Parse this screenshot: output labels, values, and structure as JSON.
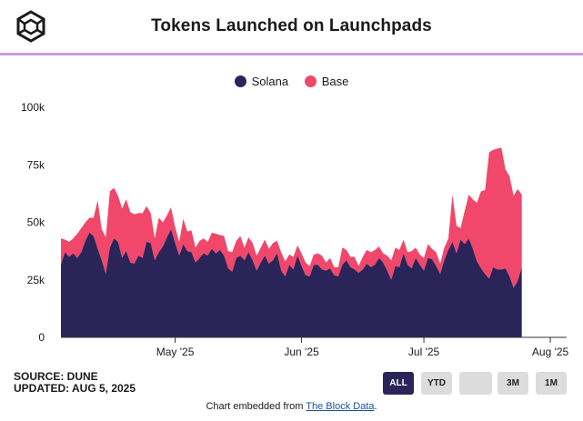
{
  "header": {
    "title": "Tokens Launched on Launchpads"
  },
  "colors": {
    "solana": "#2b2459",
    "base": "#f0476b",
    "divider": "#c59bea"
  },
  "chart_data": {
    "type": "area",
    "stacked": true,
    "grid": false,
    "legend_position": "top",
    "x_start": "2025-04-03",
    "x_end": "2025-08-05",
    "x_tick_labels": [
      {
        "date": "2025-05-01",
        "label": "May '25"
      },
      {
        "date": "2025-06-01",
        "label": "Jun '25"
      },
      {
        "date": "2025-07-01",
        "label": "Jul '25"
      },
      {
        "date": "2025-08-01",
        "label": "Aug '25"
      }
    ],
    "y_ticks": [
      {
        "value": 0,
        "label": "0"
      },
      {
        "value": 25000,
        "label": "25k"
      },
      {
        "value": 50000,
        "label": "50k"
      },
      {
        "value": 75000,
        "label": "75k"
      },
      {
        "value": 100000,
        "label": "100k"
      }
    ],
    "ylim": [
      0,
      100000
    ],
    "series": [
      {
        "name": "Solana",
        "color": "#2b2459",
        "values": [
          [
            0,
            31500
          ],
          [
            1,
            37000
          ],
          [
            2,
            35000
          ],
          [
            3,
            36500
          ],
          [
            4,
            34500
          ],
          [
            5,
            37000
          ],
          [
            6,
            42000
          ],
          [
            7,
            45500
          ],
          [
            8,
            44000
          ],
          [
            9,
            38500
          ],
          [
            10,
            33500
          ],
          [
            11,
            27500
          ],
          [
            12,
            39000
          ],
          [
            13,
            43000
          ],
          [
            14,
            41500
          ],
          [
            15,
            34500
          ],
          [
            16,
            37500
          ],
          [
            17,
            32500
          ],
          [
            18,
            32000
          ],
          [
            19,
            35500
          ],
          [
            20,
            34500
          ],
          [
            21,
            41500
          ],
          [
            22,
            41000
          ],
          [
            23,
            33500
          ],
          [
            24,
            37000
          ],
          [
            25,
            39500
          ],
          [
            26,
            43500
          ],
          [
            27,
            47000
          ],
          [
            28,
            41000
          ],
          [
            29,
            35500
          ],
          [
            30,
            40500
          ],
          [
            31,
            37500
          ],
          [
            32,
            37000
          ],
          [
            33,
            32500
          ],
          [
            34,
            34500
          ],
          [
            35,
            36500
          ],
          [
            36,
            35500
          ],
          [
            37,
            38500
          ],
          [
            38,
            36500
          ],
          [
            39,
            38000
          ],
          [
            40,
            35500
          ],
          [
            41,
            30000
          ],
          [
            42,
            28500
          ],
          [
            43,
            34500
          ],
          [
            44,
            35500
          ],
          [
            45,
            33500
          ],
          [
            46,
            37000
          ],
          [
            47,
            33500
          ],
          [
            48,
            29000
          ],
          [
            49,
            32500
          ],
          [
            50,
            35500
          ],
          [
            51,
            32000
          ],
          [
            52,
            33500
          ],
          [
            53,
            36500
          ],
          [
            54,
            29000
          ],
          [
            55,
            26500
          ],
          [
            56,
            31500
          ],
          [
            57,
            29500
          ],
          [
            58,
            35500
          ],
          [
            59,
            31000
          ],
          [
            60,
            27000
          ],
          [
            61,
            26500
          ],
          [
            62,
            31500
          ],
          [
            63,
            31500
          ],
          [
            64,
            29500
          ],
          [
            65,
            29000
          ],
          [
            66,
            30000
          ],
          [
            67,
            27000
          ],
          [
            68,
            26500
          ],
          [
            69,
            31500
          ],
          [
            70,
            33500
          ],
          [
            71,
            30500
          ],
          [
            72,
            29500
          ],
          [
            73,
            28000
          ],
          [
            74,
            29500
          ],
          [
            75,
            32000
          ],
          [
            76,
            30500
          ],
          [
            77,
            31500
          ],
          [
            78,
            34500
          ],
          [
            79,
            32500
          ],
          [
            80,
            29000
          ],
          [
            81,
            25000
          ],
          [
            82,
            31000
          ],
          [
            83,
            30500
          ],
          [
            84,
            36500
          ],
          [
            85,
            31500
          ],
          [
            86,
            30000
          ],
          [
            87,
            34500
          ],
          [
            88,
            31500
          ],
          [
            89,
            29000
          ],
          [
            90,
            34500
          ],
          [
            91,
            34000
          ],
          [
            92,
            31000
          ],
          [
            93,
            27500
          ],
          [
            94,
            33500
          ],
          [
            95,
            38000
          ],
          [
            96,
            41500
          ],
          [
            97,
            36500
          ],
          [
            98,
            42500
          ],
          [
            99,
            40500
          ],
          [
            100,
            43000
          ],
          [
            101,
            38500
          ],
          [
            102,
            33000
          ],
          [
            103,
            30000
          ],
          [
            104,
            27500
          ],
          [
            105,
            25500
          ],
          [
            106,
            30500
          ],
          [
            107,
            29500
          ],
          [
            108,
            29500
          ],
          [
            109,
            30000
          ],
          [
            110,
            26500
          ],
          [
            111,
            21500
          ],
          [
            112,
            24500
          ],
          [
            113,
            30500
          ]
        ]
      },
      {
        "name": "Base",
        "color": "#f0476b",
        "values": [
          [
            0,
            11500
          ],
          [
            1,
            5500
          ],
          [
            2,
            6500
          ],
          [
            3,
            6500
          ],
          [
            4,
            10500
          ],
          [
            5,
            10500
          ],
          [
            6,
            8000
          ],
          [
            7,
            6500
          ],
          [
            8,
            8000
          ],
          [
            9,
            21000
          ],
          [
            10,
            13500
          ],
          [
            11,
            16000
          ],
          [
            12,
            24500
          ],
          [
            13,
            22000
          ],
          [
            14,
            20000
          ],
          [
            15,
            21500
          ],
          [
            16,
            22500
          ],
          [
            17,
            22000
          ],
          [
            18,
            21500
          ],
          [
            19,
            18500
          ],
          [
            20,
            19500
          ],
          [
            21,
            15500
          ],
          [
            22,
            13000
          ],
          [
            23,
            9500
          ],
          [
            24,
            15000
          ],
          [
            25,
            10500
          ],
          [
            26,
            9500
          ],
          [
            27,
            9500
          ],
          [
            28,
            7000
          ],
          [
            29,
            6000
          ],
          [
            30,
            11000
          ],
          [
            31,
            8500
          ],
          [
            32,
            9500
          ],
          [
            33,
            6500
          ],
          [
            34,
            7500
          ],
          [
            35,
            6500
          ],
          [
            36,
            6000
          ],
          [
            37,
            7000
          ],
          [
            38,
            8500
          ],
          [
            39,
            6500
          ],
          [
            40,
            8500
          ],
          [
            41,
            7500
          ],
          [
            42,
            8500
          ],
          [
            43,
            7500
          ],
          [
            44,
            8500
          ],
          [
            45,
            5500
          ],
          [
            46,
            6500
          ],
          [
            47,
            7500
          ],
          [
            48,
            6500
          ],
          [
            49,
            6500
          ],
          [
            50,
            7000
          ],
          [
            51,
            6500
          ],
          [
            52,
            7500
          ],
          [
            53,
            5500
          ],
          [
            54,
            8000
          ],
          [
            55,
            6500
          ],
          [
            56,
            4500
          ],
          [
            57,
            5500
          ],
          [
            58,
            4500
          ],
          [
            59,
            5500
          ],
          [
            60,
            5500
          ],
          [
            61,
            4500
          ],
          [
            62,
            4500
          ],
          [
            63,
            5000
          ],
          [
            64,
            6000
          ],
          [
            65,
            3500
          ],
          [
            66,
            4500
          ],
          [
            67,
            3500
          ],
          [
            68,
            4000
          ],
          [
            69,
            7500
          ],
          [
            70,
            4500
          ],
          [
            71,
            4500
          ],
          [
            72,
            5500
          ],
          [
            73,
            3000
          ],
          [
            74,
            5500
          ],
          [
            75,
            6000
          ],
          [
            76,
            6500
          ],
          [
            77,
            6500
          ],
          [
            78,
            5000
          ],
          [
            79,
            4000
          ],
          [
            80,
            6500
          ],
          [
            81,
            8500
          ],
          [
            82,
            8000
          ],
          [
            83,
            7500
          ],
          [
            84,
            6000
          ],
          [
            85,
            5500
          ],
          [
            86,
            7500
          ],
          [
            87,
            4500
          ],
          [
            88,
            4500
          ],
          [
            89,
            5500
          ],
          [
            90,
            6000
          ],
          [
            91,
            4500
          ],
          [
            92,
            6000
          ],
          [
            93,
            4500
          ],
          [
            94,
            5500
          ],
          [
            95,
            5000
          ],
          [
            96,
            20500
          ],
          [
            97,
            12000
          ],
          [
            98,
            5000
          ],
          [
            99,
            14500
          ],
          [
            100,
            19000
          ],
          [
            101,
            21500
          ],
          [
            102,
            25500
          ],
          [
            103,
            33500
          ],
          [
            104,
            36500
          ],
          [
            105,
            55000
          ],
          [
            106,
            51000
          ],
          [
            107,
            52500
          ],
          [
            108,
            53000
          ],
          [
            109,
            43000
          ],
          [
            110,
            43500
          ],
          [
            111,
            40000
          ],
          [
            112,
            40000
          ],
          [
            113,
            31500
          ]
        ]
      }
    ]
  },
  "footer": {
    "source": "SOURCE: DUNE",
    "updated": "UPDATED: AUG 5, 2025",
    "buttons": [
      "ALL",
      "YTD",
      "",
      "3M",
      "1M"
    ],
    "embed_prefix": "Chart embedded from ",
    "embed_link": "The Block Data",
    "embed_suffix": "."
  }
}
